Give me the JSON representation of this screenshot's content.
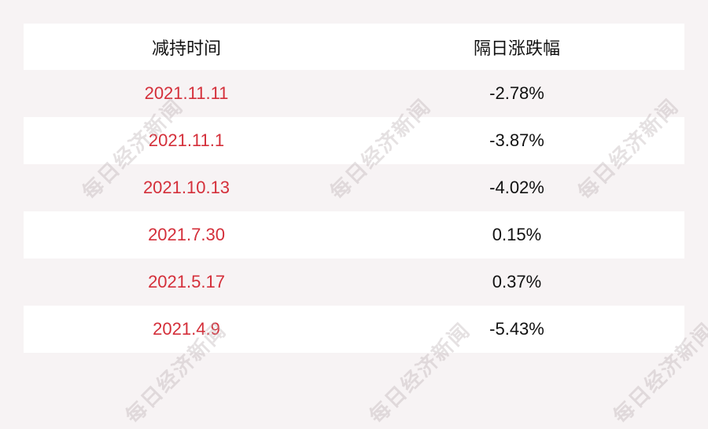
{
  "table": {
    "headers": [
      "减持时间",
      "隔日涨跌幅"
    ],
    "rows": [
      {
        "date": "2021.11.11",
        "change": "-2.78%"
      },
      {
        "date": "2021.11.1",
        "change": "-3.87%"
      },
      {
        "date": "2021.10.13",
        "change": "-4.02%"
      },
      {
        "date": "2021.7.30",
        "change": "0.15%"
      },
      {
        "date": "2021.5.17",
        "change": "0.37%"
      },
      {
        "date": "2021.4.9",
        "change": "-5.43%"
      }
    ]
  },
  "watermark": "每日经济新闻",
  "colors": {
    "date_text": "#d42f3a",
    "background": "#f7f3f4"
  }
}
